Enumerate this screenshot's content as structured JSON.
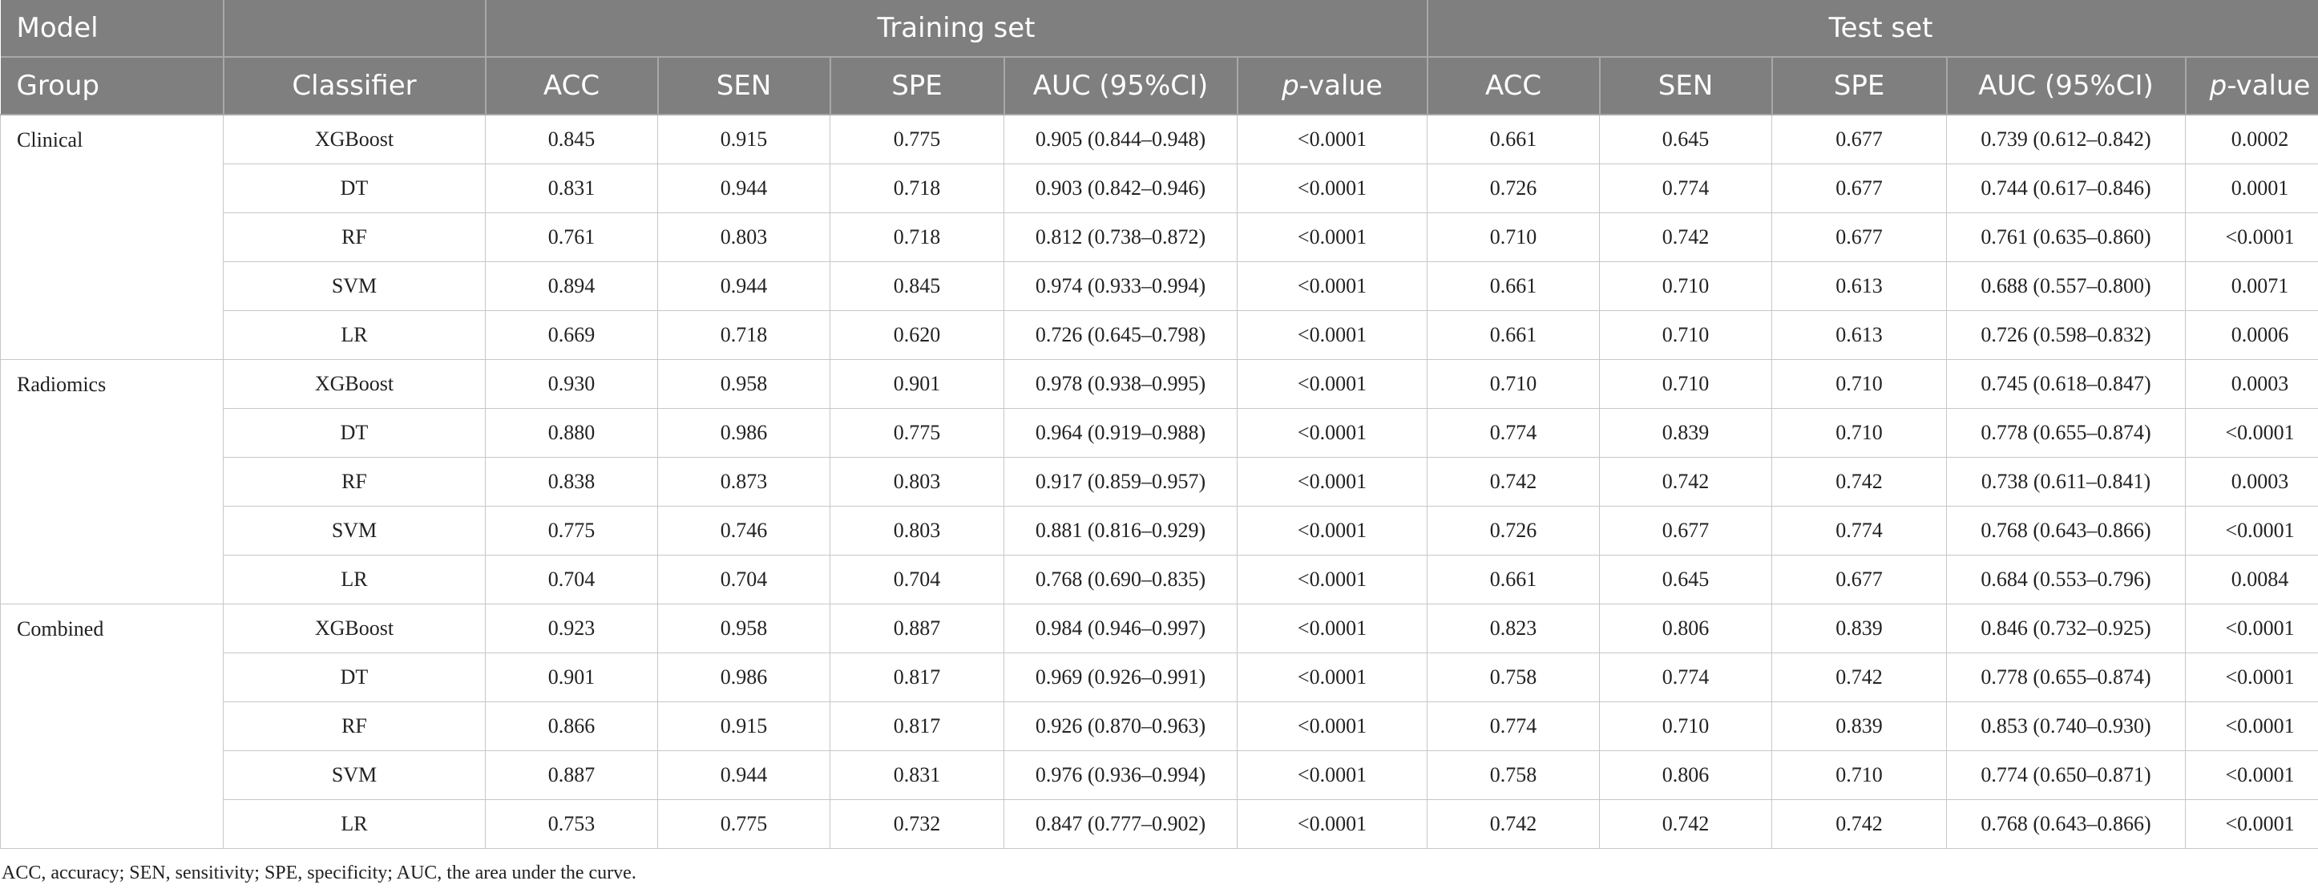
{
  "header": {
    "model_label": "Model",
    "training_set_label": "Training set",
    "test_set_label": "Test set",
    "group_label": "Group",
    "classifier_label": "Classifier",
    "acc_label": "ACC",
    "sen_label": "SEN",
    "spe_label": "SPE",
    "auc_label": "AUC (95%CI)",
    "p_label_italic": "p",
    "p_label_suffix": "-value"
  },
  "groups": [
    {
      "name": "Clinical",
      "rows": [
        {
          "classifier": "XGBoost",
          "train": [
            "0.845",
            "0.915",
            "0.775",
            "0.905 (0.844–0.948)",
            "<0.0001"
          ],
          "test": [
            "0.661",
            "0.645",
            "0.677",
            "0.739 (0.612–0.842)",
            "0.0002"
          ]
        },
        {
          "classifier": "DT",
          "train": [
            "0.831",
            "0.944",
            "0.718",
            "0.903 (0.842–0.946)",
            "<0.0001"
          ],
          "test": [
            "0.726",
            "0.774",
            "0.677",
            "0.744 (0.617–0.846)",
            "0.0001"
          ]
        },
        {
          "classifier": "RF",
          "train": [
            "0.761",
            "0.803",
            "0.718",
            "0.812 (0.738–0.872)",
            "<0.0001"
          ],
          "test": [
            "0.710",
            "0.742",
            "0.677",
            "0.761 (0.635–0.860)",
            "<0.0001"
          ]
        },
        {
          "classifier": "SVM",
          "train": [
            "0.894",
            "0.944",
            "0.845",
            "0.974 (0.933–0.994)",
            "<0.0001"
          ],
          "test": [
            "0.661",
            "0.710",
            "0.613",
            "0.688 (0.557–0.800)",
            "0.0071"
          ]
        },
        {
          "classifier": "LR",
          "train": [
            "0.669",
            "0.718",
            "0.620",
            "0.726 (0.645–0.798)",
            "<0.0001"
          ],
          "test": [
            "0.661",
            "0.710",
            "0.613",
            "0.726 (0.598–0.832)",
            "0.0006"
          ]
        }
      ]
    },
    {
      "name": "Radiomics",
      "rows": [
        {
          "classifier": "XGBoost",
          "train": [
            "0.930",
            "0.958",
            "0.901",
            "0.978 (0.938–0.995)",
            "<0.0001"
          ],
          "test": [
            "0.710",
            "0.710",
            "0.710",
            "0.745 (0.618–0.847)",
            "0.0003"
          ]
        },
        {
          "classifier": "DT",
          "train": [
            "0.880",
            "0.986",
            "0.775",
            "0.964 (0.919–0.988)",
            "<0.0001"
          ],
          "test": [
            "0.774",
            "0.839",
            "0.710",
            "0.778 (0.655–0.874)",
            "<0.0001"
          ]
        },
        {
          "classifier": "RF",
          "train": [
            "0.838",
            "0.873",
            "0.803",
            "0.917 (0.859–0.957)",
            "<0.0001"
          ],
          "test": [
            "0.742",
            "0.742",
            "0.742",
            "0.738 (0.611–0.841)",
            "0.0003"
          ]
        },
        {
          "classifier": "SVM",
          "train": [
            "0.775",
            "0.746",
            "0.803",
            "0.881 (0.816–0.929)",
            "<0.0001"
          ],
          "test": [
            "0.726",
            "0.677",
            "0.774",
            "0.768 (0.643–0.866)",
            "<0.0001"
          ]
        },
        {
          "classifier": "LR",
          "train": [
            "0.704",
            "0.704",
            "0.704",
            "0.768 (0.690–0.835)",
            "<0.0001"
          ],
          "test": [
            "0.661",
            "0.645",
            "0.677",
            "0.684 (0.553–0.796)",
            "0.0084"
          ]
        }
      ]
    },
    {
      "name": "Combined",
      "rows": [
        {
          "classifier": "XGBoost",
          "train": [
            "0.923",
            "0.958",
            "0.887",
            "0.984 (0.946–0.997)",
            "<0.0001"
          ],
          "test": [
            "0.823",
            "0.806",
            "0.839",
            "0.846 (0.732–0.925)",
            "<0.0001"
          ]
        },
        {
          "classifier": "DT",
          "train": [
            "0.901",
            "0.986",
            "0.817",
            "0.969 (0.926–0.991)",
            "<0.0001"
          ],
          "test": [
            "0.758",
            "0.774",
            "0.742",
            "0.778 (0.655–0.874)",
            "<0.0001"
          ]
        },
        {
          "classifier": "RF",
          "train": [
            "0.866",
            "0.915",
            "0.817",
            "0.926 (0.870–0.963)",
            "<0.0001"
          ],
          "test": [
            "0.774",
            "0.710",
            "0.839",
            "0.853 (0.740–0.930)",
            "<0.0001"
          ]
        },
        {
          "classifier": "SVM",
          "train": [
            "0.887",
            "0.944",
            "0.831",
            "0.976 (0.936–0.994)",
            "<0.0001"
          ],
          "test": [
            "0.758",
            "0.806",
            "0.710",
            "0.774 (0.650–0.871)",
            "<0.0001"
          ]
        },
        {
          "classifier": "LR",
          "train": [
            "0.753",
            "0.775",
            "0.732",
            "0.847 (0.777–0.902)",
            "<0.0001"
          ],
          "test": [
            "0.742",
            "0.742",
            "0.742",
            "0.768 (0.643–0.866)",
            "<0.0001"
          ]
        }
      ]
    }
  ],
  "footnote": "ACC, accuracy; SEN, sensitivity; SPE, specificity; AUC, the area under the curve."
}
